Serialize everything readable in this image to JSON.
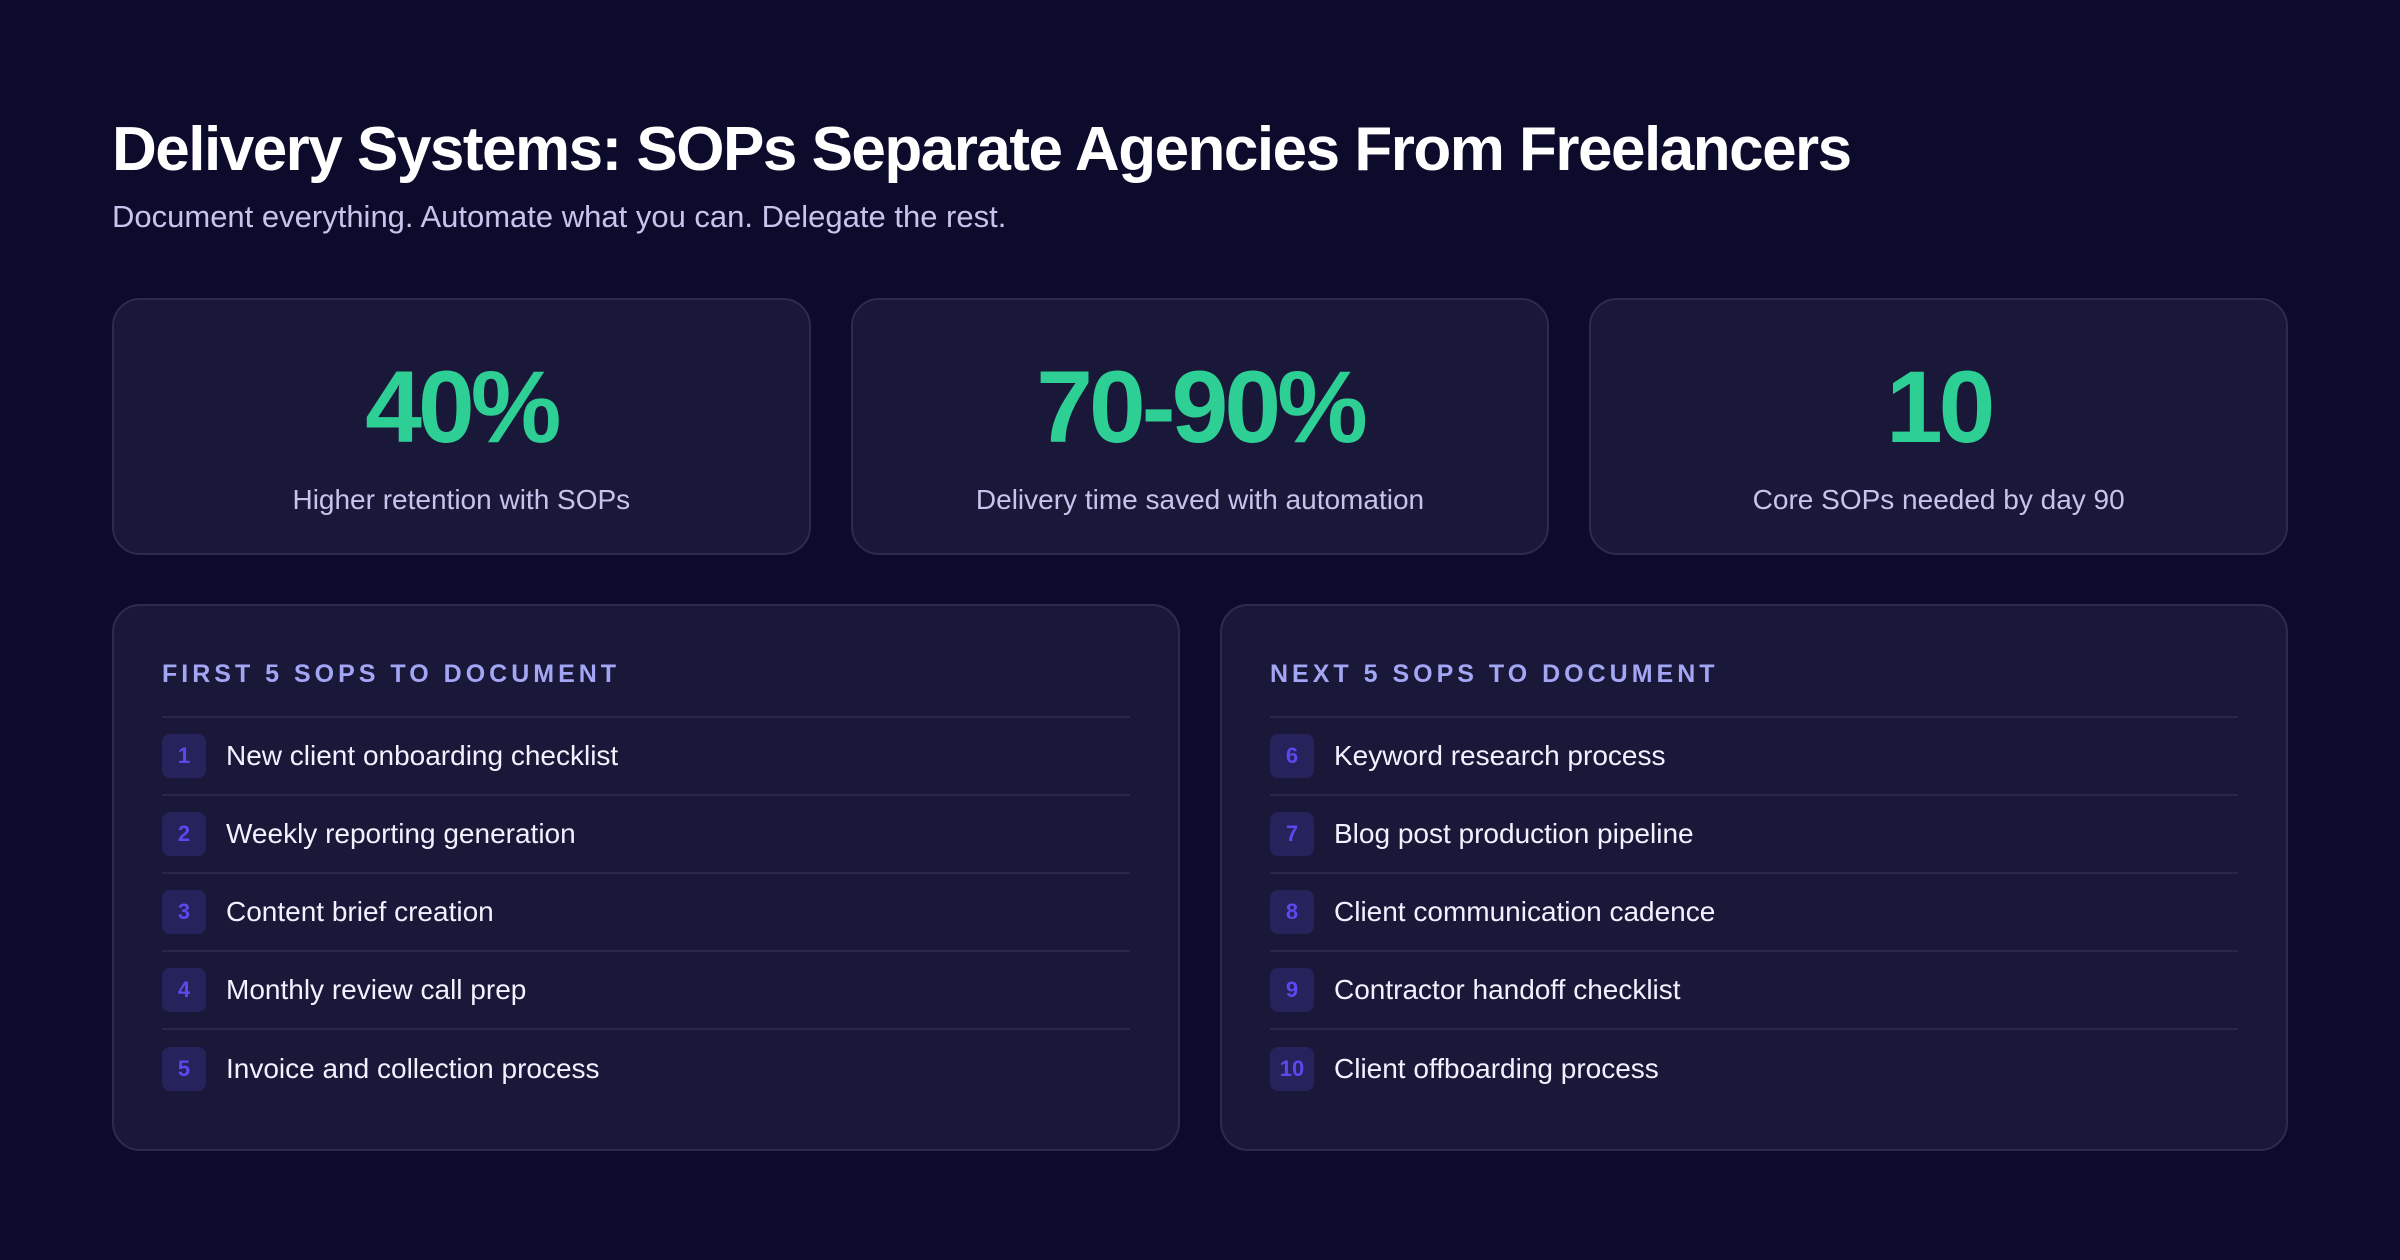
{
  "header": {
    "title": "Delivery Systems: SOPs Separate Agencies From Freelancers",
    "subtitle": "Document everything. Automate what you can. Delegate the rest."
  },
  "stats": [
    {
      "value": "40%",
      "label": "Higher retention with SOPs"
    },
    {
      "value": "70-90%",
      "label": "Delivery time saved with automation"
    },
    {
      "value": "10",
      "label": "Core SOPs needed by day 90"
    }
  ],
  "lists": [
    {
      "heading": "FIRST 5 SOPS TO DOCUMENT",
      "items": [
        {
          "num": "1",
          "text": "New client onboarding checklist"
        },
        {
          "num": "2",
          "text": "Weekly reporting generation"
        },
        {
          "num": "3",
          "text": "Content brief creation"
        },
        {
          "num": "4",
          "text": "Monthly review call prep"
        },
        {
          "num": "5",
          "text": "Invoice and collection process"
        }
      ]
    },
    {
      "heading": "NEXT 5 SOPS TO DOCUMENT",
      "items": [
        {
          "num": "6",
          "text": "Keyword research process"
        },
        {
          "num": "7",
          "text": "Blog post production pipeline"
        },
        {
          "num": "8",
          "text": "Client communication cadence"
        },
        {
          "num": "9",
          "text": "Contractor handoff checklist"
        },
        {
          "num": "10",
          "text": "Client offboarding process"
        }
      ]
    }
  ],
  "colors": {
    "background": "#0d0b2b",
    "card": "#1a1838",
    "accent_green": "#2ecf94",
    "heading_purple": "#a3a5f5",
    "badge_bg": "#26225c",
    "badge_text": "#5b48ee"
  }
}
